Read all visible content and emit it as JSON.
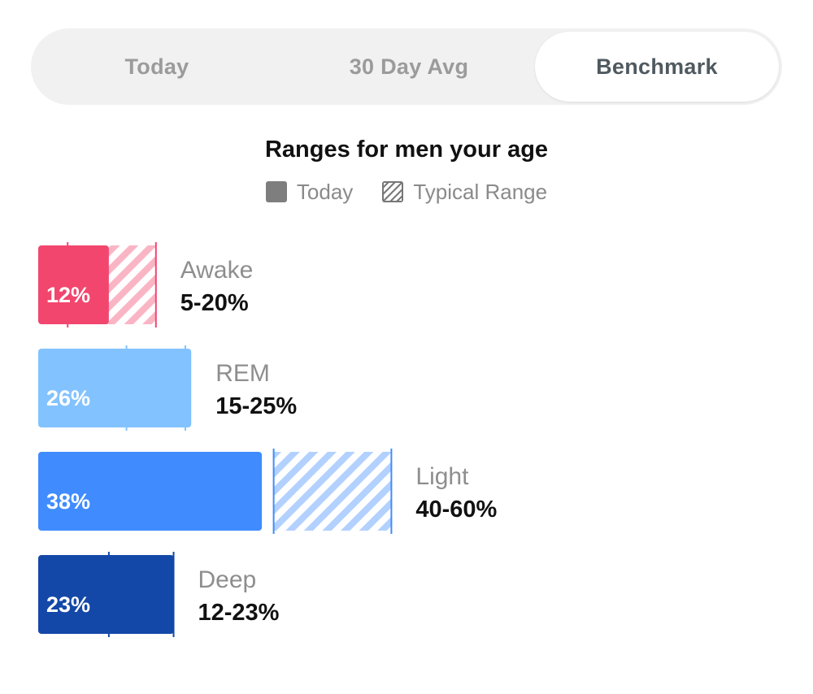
{
  "tabs": [
    {
      "label": "Today",
      "active": false
    },
    {
      "label": "30 Day Avg",
      "active": false
    },
    {
      "label": "Benchmark",
      "active": true
    }
  ],
  "title": "Ranges for men your age",
  "legend": {
    "today": "Today",
    "typical": "Typical Range"
  },
  "chart_data": {
    "type": "bar",
    "orientation": "horizontal",
    "title": "Ranges for men your age",
    "unit": "%",
    "categories": [
      "Awake",
      "REM",
      "Light",
      "Deep"
    ],
    "series": [
      {
        "name": "Today",
        "values": [
          12,
          26,
          38,
          23
        ]
      }
    ],
    "typical_range": [
      {
        "stage": "Awake",
        "label": "5-20%",
        "min": 5,
        "max": 20
      },
      {
        "stage": "REM",
        "label": "15-25%",
        "min": 15,
        "max": 25
      },
      {
        "stage": "Light",
        "label": "40-60%",
        "min": 40,
        "max": 60
      },
      {
        "stage": "Deep",
        "label": "12-23%",
        "min": 12,
        "max": 23
      }
    ],
    "colors": {
      "Awake": "#f2466e",
      "REM": "#82c3ff",
      "Light": "#408cff",
      "Deep": "#1448a8"
    }
  }
}
